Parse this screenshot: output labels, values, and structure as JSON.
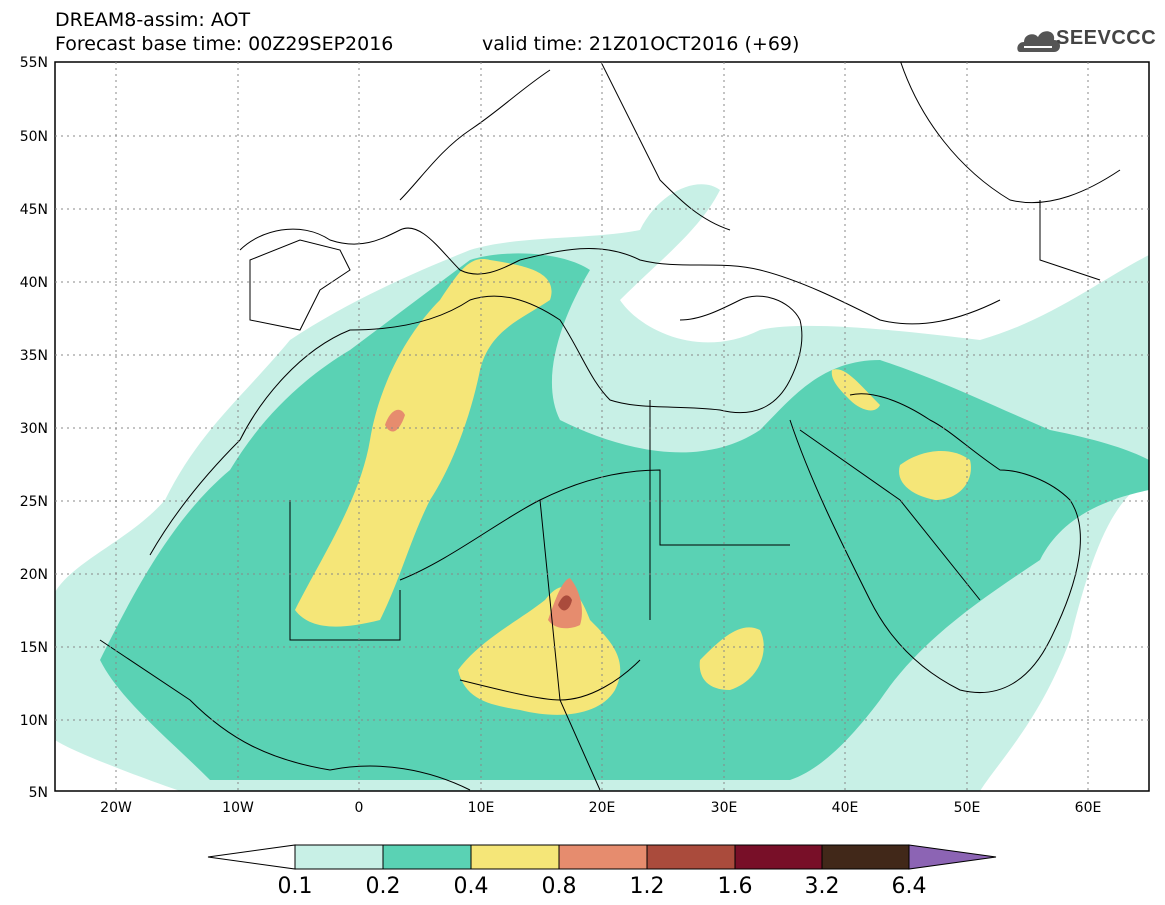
{
  "header": {
    "line1": "DREAM8-assim: AOT",
    "line2": "Forecast base time: 00Z29SEP2016",
    "valid": "valid time: 21Z01OCT2016 (+69)",
    "logo_text": "SEEVCCC"
  },
  "axes": {
    "lat_labels": [
      "55N",
      "50N",
      "45N",
      "40N",
      "35N",
      "30N",
      "25N",
      "20N",
      "15N",
      "10N",
      "5N"
    ],
    "lon_labels": [
      "20W",
      "10W",
      "0",
      "10E",
      "20E",
      "30E",
      "40E",
      "50E",
      "60E"
    ]
  },
  "colorbar": {
    "labels": [
      "0.1",
      "0.2",
      "0.4",
      "0.8",
      "1.2",
      "1.6",
      "3.2",
      "6.4"
    ],
    "colors": [
      "#c8f0e6",
      "#5ad2b4",
      "#f5e678",
      "#e68c6e",
      "#aa4b3c",
      "#780f28",
      "#412819",
      "#8c64b4"
    ]
  },
  "map_fields": {
    "land_color": "#ffffff",
    "border_color": "#000000"
  }
}
